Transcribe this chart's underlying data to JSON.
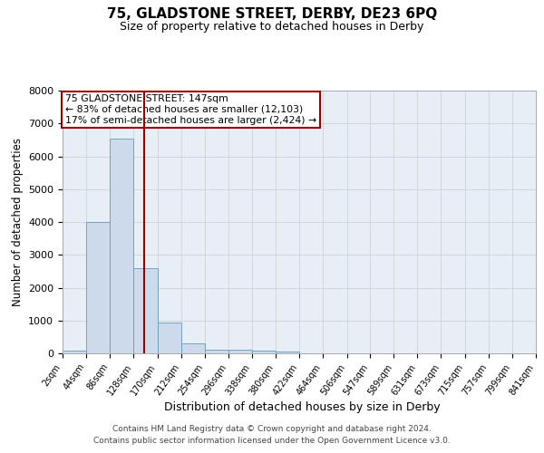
{
  "title": "75, GLADSTONE STREET, DERBY, DE23 6PQ",
  "subtitle": "Size of property relative to detached houses in Derby",
  "xlabel": "Distribution of detached houses by size in Derby",
  "ylabel": "Number of detached properties",
  "property_label": "75 GLADSTONE STREET: 147sqm",
  "annotation_line1": "← 83% of detached houses are smaller (12,103)",
  "annotation_line2": "17% of semi-detached houses are larger (2,424) →",
  "footer_line1": "Contains HM Land Registry data © Crown copyright and database right 2024.",
  "footer_line2": "Contains public sector information licensed under the Open Government Licence v3.0.",
  "bin_edges": [
    2,
    44,
    86,
    128,
    170,
    212,
    254,
    296,
    338,
    380,
    422,
    464,
    506,
    547,
    589,
    631,
    673,
    715,
    757,
    799,
    841
  ],
  "bar_values": [
    80,
    4000,
    6550,
    2600,
    950,
    300,
    120,
    105,
    85,
    50,
    0,
    0,
    0,
    0,
    0,
    0,
    0,
    0,
    0,
    0
  ],
  "bar_color": "#ccdaeb",
  "bar_edge_color": "#6699bb",
  "vline_x": 147,
  "vline_color": "#990000",
  "annotation_box_color": "#990000",
  "grid_color": "#cccccc",
  "bg_color": "#e8eef5",
  "ylim": [
    0,
    8000
  ],
  "yticks": [
    0,
    1000,
    2000,
    3000,
    4000,
    5000,
    6000,
    7000,
    8000
  ]
}
